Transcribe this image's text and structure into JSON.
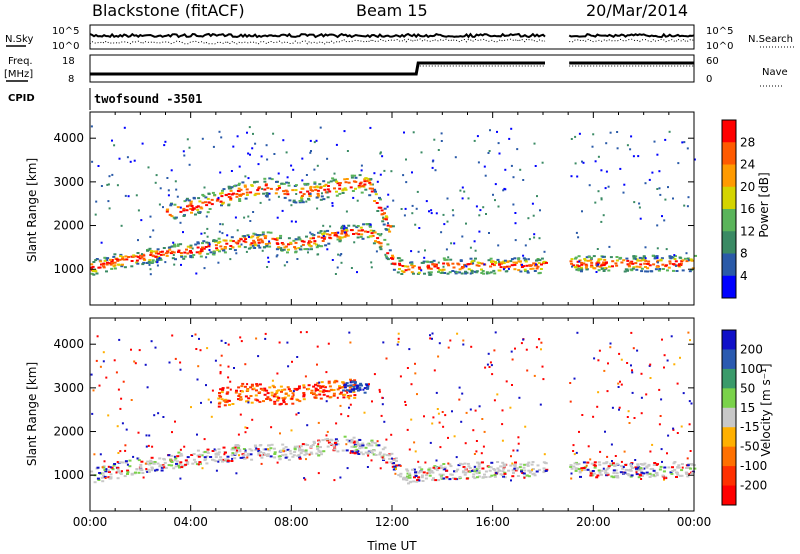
{
  "header": {
    "radar": "Blackstone (fitACF)",
    "beam": "Beam 15",
    "date": "20/Mar/2014"
  },
  "top_panels": {
    "nsky_label": "N.Sky",
    "nsky_ticks": [
      "10^5",
      "10^0"
    ],
    "nsearch_label": "N.Search",
    "nsearch_ticks": [
      "10^5",
      "10^0"
    ],
    "freq_label": "Freq.",
    "freq_unit": "[MHz]",
    "freq_ticks": [
      "18",
      "8"
    ],
    "nave_label": "Nave",
    "nave_ticks": [
      "60",
      "0"
    ],
    "cpid_label": "CPID",
    "cpid_value": "twofsound  -3501"
  },
  "x_axis": {
    "label": "Time UT",
    "ticks": [
      "00:00",
      "04:00",
      "08:00",
      "12:00",
      "16:00",
      "20:00",
      "00:00"
    ]
  },
  "power_colorbar": {
    "label": "Power [dB]",
    "ticks": [
      "28",
      "24",
      "20",
      "16",
      "12",
      "8",
      "4"
    ],
    "colors": [
      "#ff0000",
      "#ff5a00",
      "#ff9a00",
      "#d4d400",
      "#5ab45a",
      "#3a8a64",
      "#2a5aa8",
      "#0000ff"
    ]
  },
  "velocity_colorbar": {
    "label": "Velocity [m s⁻¹]",
    "ticks": [
      "200",
      "100",
      "50",
      "15",
      "-15",
      "-50",
      "-100",
      "-200"
    ],
    "colors": [
      "#1010c8",
      "#2a5ab0",
      "#3a9a6a",
      "#7ad24a",
      "#c8c8c8",
      "#ffb000",
      "#ff7000",
      "#ff3000",
      "#ff0000"
    ]
  },
  "chart_data": [
    {
      "type": "heatmap",
      "panel": "power",
      "ylabel": "Slant Range [km]",
      "xlabel": "Time UT",
      "xlim": [
        0,
        24
      ],
      "ylim": [
        180,
        4600
      ],
      "y_ticks": [
        "4000",
        "3000",
        "2000",
        "1000"
      ],
      "data_gap_hours": [
        18.1,
        19.0
      ],
      "series": [
        {
          "name": "lower band",
          "x": [
            0,
            1,
            2,
            3,
            4,
            5,
            6,
            7,
            8,
            9,
            10,
            11,
            11.6,
            12,
            12.5,
            13,
            14,
            16,
            18,
            19,
            20,
            22,
            24
          ],
          "y": [
            1050,
            1200,
            1300,
            1400,
            1450,
            1550,
            1650,
            1700,
            1550,
            1700,
            1850,
            1900,
            1600,
            1200,
            1000,
            1050,
            1100,
            1100,
            1100,
            1150,
            1150,
            1150,
            1150
          ],
          "power_db": 24
        },
        {
          "name": "upper band",
          "x": [
            3,
            5,
            6,
            7,
            8,
            9,
            10,
            11,
            12
          ],
          "y": [
            2300,
            2600,
            2800,
            2900,
            2750,
            2800,
            2950,
            3000,
            1800
          ],
          "power_db": 26
        }
      ]
    },
    {
      "type": "heatmap",
      "panel": "velocity",
      "ylabel": "Slant Range [km]",
      "xlabel": "Time UT",
      "xlim": [
        0,
        24
      ],
      "ylim": [
        180,
        4600
      ],
      "y_ticks": [
        "4000",
        "3000",
        "2000",
        "1000"
      ],
      "data_gap_hours": [
        18.1,
        19.0
      ],
      "series": [
        {
          "name": "lower band",
          "x": [
            0,
            2,
            4,
            6,
            8,
            10,
            11.5,
            12.5,
            14,
            16,
            18,
            19,
            22,
            24
          ],
          "y": [
            1000,
            1250,
            1400,
            1550,
            1550,
            1750,
            1600,
            1000,
            1100,
            1150,
            1150,
            1150,
            1150,
            1150
          ],
          "velocity": 0
        },
        {
          "name": "upper band",
          "x": [
            5,
            6,
            7,
            8,
            9,
            10,
            10.5
          ],
          "y": [
            2800,
            2900,
            2900,
            2800,
            2950,
            3000,
            3000
          ],
          "velocity": -120
        },
        {
          "name": "blue patch",
          "x": [
            10.0,
            10.5,
            11.0
          ],
          "y": [
            3050,
            3050,
            3000
          ],
          "velocity": 220
        }
      ]
    }
  ]
}
